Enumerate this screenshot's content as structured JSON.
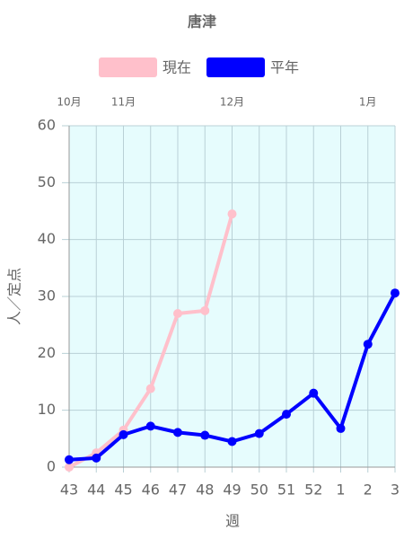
{
  "chart_data": {
    "type": "line",
    "title": "唐津",
    "categories": [
      "43",
      "44",
      "45",
      "46",
      "47",
      "48",
      "49",
      "50",
      "51",
      "52",
      "1",
      "2",
      "3"
    ],
    "top_labels": [
      "10月",
      null,
      "11月",
      null,
      null,
      null,
      "12月",
      null,
      null,
      null,
      null,
      "1月",
      null
    ],
    "x_label": "週",
    "y_label": "人／定点",
    "ylim": [
      0,
      60
    ],
    "yticks": [
      0,
      10,
      20,
      30,
      40,
      50,
      60
    ],
    "grid": true,
    "background": "#e6fcfd",
    "series": [
      {
        "name": "現在",
        "color": "#ffc0cb",
        "values": [
          0,
          2.5,
          6.5,
          13.8,
          27,
          27.5,
          44.5,
          null,
          null,
          null,
          null,
          null,
          null
        ]
      },
      {
        "name": "平年",
        "color": "#0000ff",
        "values": [
          1.3,
          1.6,
          5.7,
          7.2,
          6.1,
          5.6,
          4.5,
          5.9,
          9.3,
          13,
          6.8,
          21.6,
          30.6
        ]
      }
    ]
  }
}
